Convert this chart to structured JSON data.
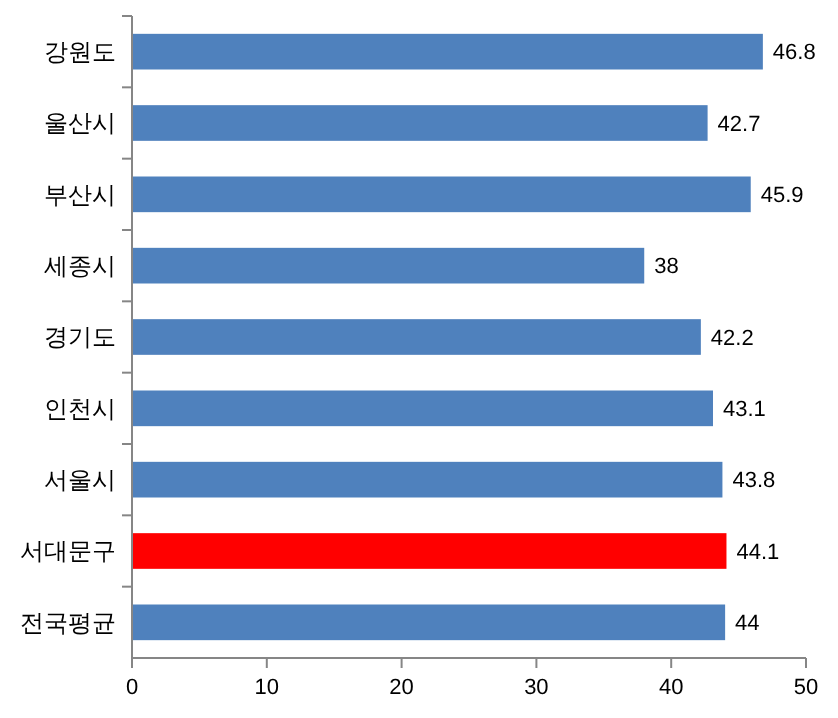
{
  "chart_data": {
    "type": "bar",
    "orientation": "horizontal",
    "categories": [
      "강원도",
      "울산시",
      "부산시",
      "세종시",
      "경기도",
      "인천시",
      "서울시",
      "서대문구",
      "전국평균"
    ],
    "values": [
      46.8,
      42.7,
      45.9,
      38,
      42.2,
      43.1,
      43.8,
      44.1,
      44
    ],
    "colors": [
      "#4f81bd",
      "#4f81bd",
      "#4f81bd",
      "#4f81bd",
      "#4f81bd",
      "#4f81bd",
      "#4f81bd",
      "#ff0000",
      "#4f81bd"
    ],
    "xlim": [
      0,
      50
    ],
    "xticks": [
      0,
      10,
      20,
      30,
      40,
      50
    ],
    "data_labels": true
  }
}
